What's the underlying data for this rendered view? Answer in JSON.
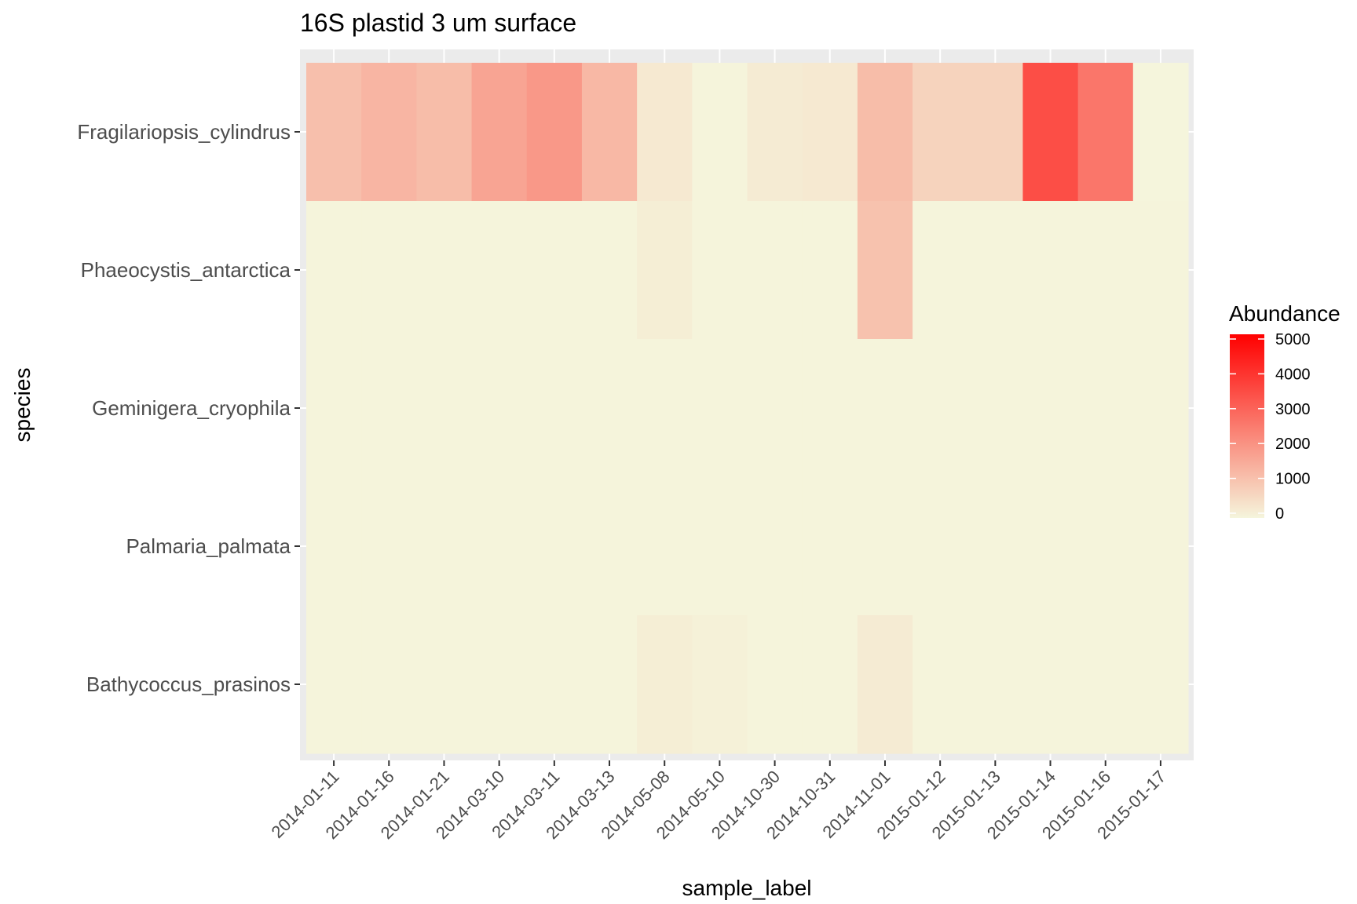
{
  "chart_data": {
    "type": "heatmap",
    "title": "16S plastid 3 um surface",
    "xlabel": "sample_label",
    "ylabel": "species",
    "x": [
      "2014-01-11",
      "2014-01-16",
      "2014-01-21",
      "2014-03-10",
      "2014-03-11",
      "2014-03-13",
      "2014-05-08",
      "2014-05-10",
      "2014-10-30",
      "2014-10-31",
      "2014-11-01",
      "2015-01-12",
      "2015-01-13",
      "2015-01-14",
      "2015-01-16",
      "2015-01-17"
    ],
    "y": [
      "Fragilariopsis_cylindrus",
      "Phaeocystis_antarctica",
      "Geminigera_cryophila",
      "Palmaria_palmata",
      "Bathycoccus_prasinos"
    ],
    "values": [
      [
        1100,
        1300,
        1150,
        1650,
        1900,
        1250,
        250,
        30,
        200,
        250,
        1150,
        700,
        700,
        3400,
        2600,
        0
      ],
      [
        20,
        20,
        20,
        20,
        20,
        20,
        150,
        20,
        20,
        20,
        1050,
        20,
        20,
        20,
        20,
        20
      ],
      [
        20,
        20,
        20,
        20,
        20,
        20,
        20,
        20,
        20,
        20,
        20,
        20,
        20,
        20,
        20,
        20
      ],
      [
        20,
        20,
        20,
        20,
        20,
        20,
        20,
        20,
        20,
        20,
        20,
        20,
        20,
        20,
        20,
        20
      ],
      [
        20,
        20,
        20,
        20,
        20,
        20,
        150,
        80,
        20,
        20,
        200,
        20,
        20,
        20,
        20,
        20
      ]
    ],
    "legend": {
      "title": "Abundance",
      "ticks": [
        0,
        1000,
        2000,
        3000,
        4000,
        5000
      ],
      "range": [
        0,
        5000
      ],
      "low_color": "#f5f5dc",
      "high_color": "#ff0000"
    },
    "panel_background": "#ebebeb",
    "legend_position": "right"
  }
}
